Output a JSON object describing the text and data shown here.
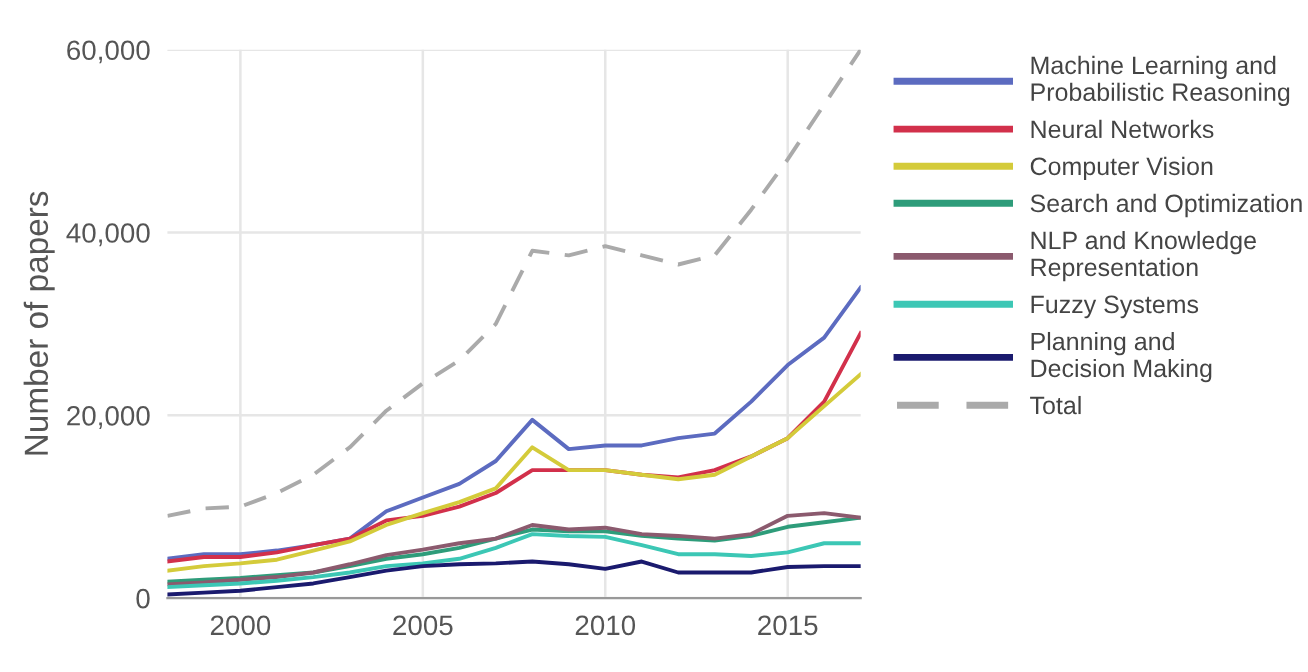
{
  "chart_data": {
    "type": "line",
    "ylabel": "Number of papers",
    "x": [
      1998,
      1999,
      2000,
      2001,
      2002,
      2003,
      2004,
      2005,
      2006,
      2007,
      2008,
      2009,
      2010,
      2011,
      2012,
      2013,
      2014,
      2015,
      2016,
      2017
    ],
    "xlim": [
      1998,
      2017
    ],
    "xticks": [
      2000,
      2005,
      2010,
      2015
    ],
    "ylim": [
      0,
      60000
    ],
    "yticks": [
      {
        "value": 0,
        "label": "0"
      },
      {
        "value": 20000,
        "label": "20,000"
      },
      {
        "value": 40000,
        "label": "40,000"
      },
      {
        "value": 60000,
        "label": "60,000"
      }
    ],
    "grid": true,
    "legend": "right",
    "marker": "none",
    "series": [
      {
        "name": "Machine Learning and Probabilistic Reasoning",
        "color": "#5c6bc0",
        "values": [
          4300,
          4800,
          4800,
          5200,
          5800,
          6500,
          9500,
          11000,
          12500,
          15000,
          19500,
          16300,
          16700,
          16700,
          17500,
          18000,
          21500,
          25500,
          28500,
          34000
        ]
      },
      {
        "name": "Neural Networks",
        "color": "#d2304b",
        "values": [
          4000,
          4500,
          4500,
          5000,
          5800,
          6500,
          8500,
          9000,
          10000,
          11500,
          14000,
          14000,
          14000,
          13500,
          13200,
          14000,
          15500,
          17500,
          21500,
          29000
        ]
      },
      {
        "name": "Computer Vision",
        "color": "#d4cb3a",
        "values": [
          3000,
          3500,
          3800,
          4200,
          5200,
          6200,
          8000,
          9300,
          10500,
          12000,
          16500,
          14000,
          14000,
          13500,
          13000,
          13500,
          15500,
          17500,
          21000,
          24500
        ]
      },
      {
        "name": "Search and Optimization",
        "color": "#2e9c7a",
        "values": [
          1800,
          2000,
          2200,
          2500,
          2800,
          3500,
          4300,
          4800,
          5500,
          6500,
          7500,
          7300,
          7300,
          6800,
          6500,
          6300,
          6800,
          7800,
          8300,
          8800
        ]
      },
      {
        "name": "NLP and Knowledge Representation",
        "color": "#8b5a6e",
        "values": [
          1500,
          1700,
          2000,
          2300,
          2800,
          3700,
          4700,
          5300,
          6000,
          6500,
          8000,
          7500,
          7700,
          7000,
          6800,
          6500,
          7000,
          9000,
          9300,
          8800
        ]
      },
      {
        "name": "Fuzzy Systems",
        "color": "#3cc7b5",
        "values": [
          1200,
          1400,
          1600,
          1900,
          2300,
          2800,
          3500,
          3800,
          4300,
          5500,
          7000,
          6800,
          6700,
          5800,
          4800,
          4800,
          4600,
          5000,
          6000,
          6000
        ]
      },
      {
        "name": "Planning and Decision Making",
        "color": "#1a1a6e",
        "values": [
          400,
          600,
          800,
          1200,
          1600,
          2300,
          3000,
          3500,
          3700,
          3800,
          4000,
          3700,
          3200,
          4000,
          2800,
          2800,
          2800,
          3400,
          3500,
          3500
        ]
      },
      {
        "name": "Total",
        "color": "#aaaaaa",
        "line_style": "dashed",
        "values": [
          9000,
          9800,
          10000,
          11500,
          13500,
          16500,
          20500,
          23500,
          26000,
          30000,
          38000,
          37500,
          38500,
          37500,
          36500,
          37500,
          42500,
          48000,
          54000,
          60000
        ]
      }
    ]
  }
}
